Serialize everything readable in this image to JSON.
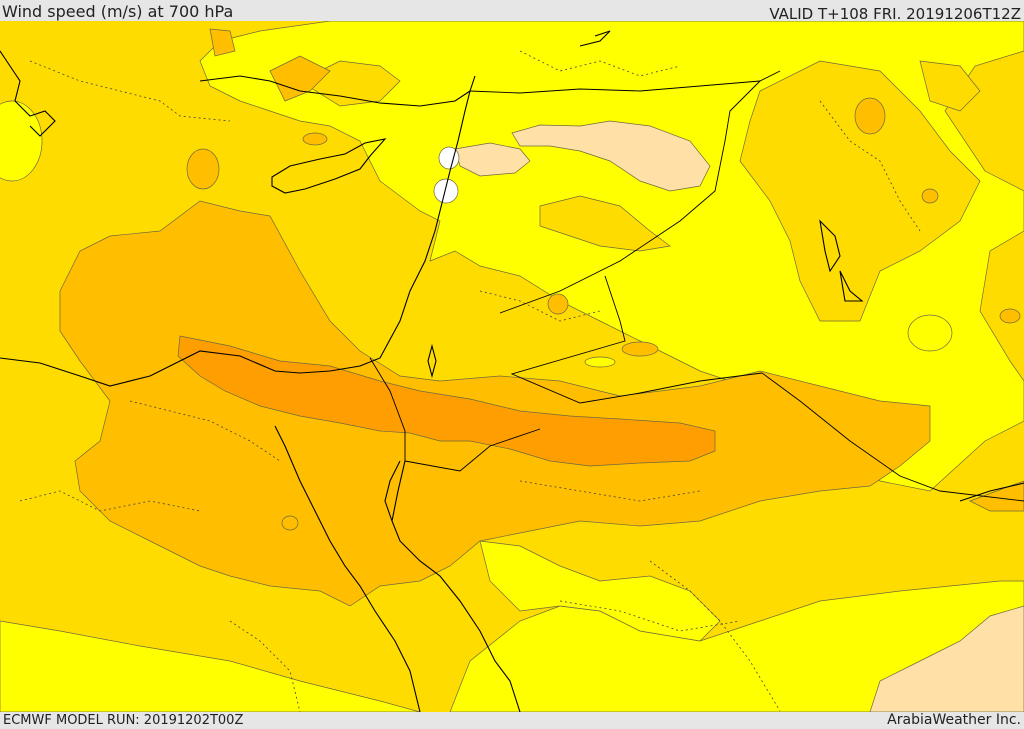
{
  "header": {
    "title": "Wind speed (m/s) at 700 hPa",
    "valid_time": "VALID T+108 FRI. 20191206T12Z"
  },
  "footer": {
    "model_run": "ECMWF MODEL RUN: 20191202T00Z",
    "credit": "ArabiaWeather Inc."
  },
  "map": {
    "variable": "wind speed",
    "level": "700 hPa",
    "region": "Middle East",
    "colors": {
      "band_lowest": "#ffffff",
      "band_low": "#ffff00",
      "band_mid": "#ffdc00",
      "band_high": "#ffbe00",
      "band_highest": "#ff9e00",
      "band_peach": "#ffe0a6",
      "coastline": "#000000",
      "contour": "#6e6a3e"
    }
  }
}
